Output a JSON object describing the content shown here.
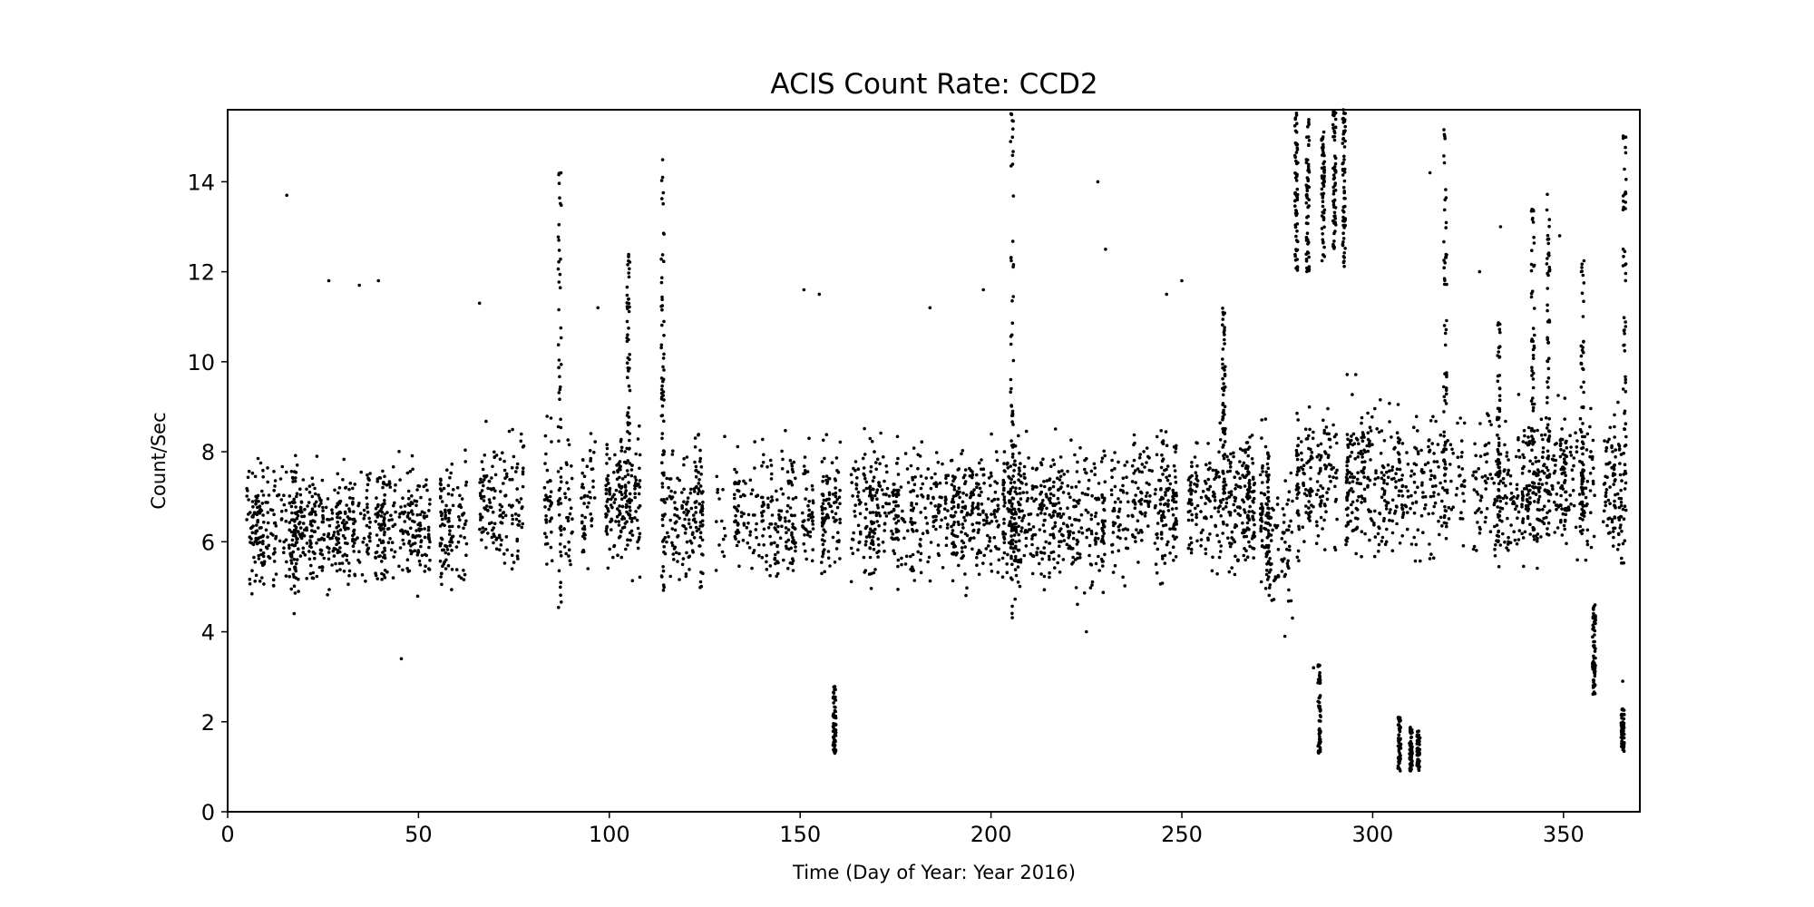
{
  "chart_data": {
    "type": "scatter",
    "title": "ACIS Count Rate: CCD2",
    "xlabel": "Time (Day of Year: Year 2016)",
    "ylabel": "Count/Sec",
    "xlim": [
      0,
      370
    ],
    "ylim": [
      0,
      15.6
    ],
    "xticks": [
      0,
      50,
      100,
      150,
      200,
      250,
      300,
      350
    ],
    "yticks": [
      0,
      2,
      4,
      6,
      8,
      10,
      12,
      14
    ],
    "grid": false,
    "marker_color": "#000000",
    "series": [
      {
        "dense_bands": [
          {
            "x": [
              5,
              62
            ],
            "y": [
              4.3,
              8.3
            ]
          },
          {
            "x": [
              66,
              110
            ],
            "y": [
              4.8,
              9.0
            ]
          },
          {
            "x": [
              113,
              160
            ],
            "y": [
              4.5,
              8.8
            ]
          },
          {
            "x": [
              161,
              202
            ],
            "y": [
              4.5,
              8.8
            ]
          },
          {
            "x": [
              203,
              235
            ],
            "y": [
              4.3,
              8.8
            ]
          },
          {
            "x": [
              237,
              272
            ],
            "y": [
              4.8,
              9.0
            ]
          },
          {
            "x": [
              272,
              278
            ],
            "y": [
              4.0,
              8.0
            ]
          },
          {
            "x": [
              280,
              324
            ],
            "y": [
              5.0,
              9.8
            ]
          },
          {
            "x": [
              326,
              365
            ],
            "y": [
              5.0,
              9.5
            ]
          }
        ],
        "columns": [
          {
            "x": 159,
            "y": [
              1.3,
              2.8
            ]
          },
          {
            "x": 205.5,
            "y": [
              4.3,
              15.6
            ]
          },
          {
            "x": 114,
            "y": [
              4.8,
              14.8
            ]
          },
          {
            "x": 87,
            "y": [
              4.5,
              14.5
            ]
          },
          {
            "x": 105,
            "y": [
              6.5,
              12.4
            ]
          },
          {
            "x": 280,
            "y": [
              12.0,
              15.6
            ]
          },
          {
            "x": 283,
            "y": [
              12.0,
              15.4
            ]
          },
          {
            "x": 287,
            "y": [
              12.2,
              15.2
            ]
          },
          {
            "x": 290,
            "y": [
              12.5,
              15.6
            ]
          },
          {
            "x": 292.5,
            "y": [
              12.0,
              15.6
            ]
          },
          {
            "x": 286,
            "y": [
              1.3,
              3.4
            ]
          },
          {
            "x": 307,
            "y": [
              0.9,
              2.1
            ]
          },
          {
            "x": 310,
            "y": [
              0.9,
              1.9
            ]
          },
          {
            "x": 312,
            "y": [
              0.9,
              1.8
            ]
          },
          {
            "x": 319,
            "y": [
              6.0,
              15.4
            ]
          },
          {
            "x": 333,
            "y": [
              6.0,
              11.0
            ]
          },
          {
            "x": 342,
            "y": [
              6.0,
              13.4
            ]
          },
          {
            "x": 346,
            "y": [
              6.0,
              13.8
            ]
          },
          {
            "x": 355,
            "y": [
              6.0,
              12.4
            ]
          },
          {
            "x": 358,
            "y": [
              2.6,
              4.6
            ]
          },
          {
            "x": 365.5,
            "y": [
              1.3,
              2.3
            ]
          },
          {
            "x": 366,
            "y": [
              5.5,
              15.3
            ]
          },
          {
            "x": 261,
            "y": [
              7.0,
              11.3
            ]
          }
        ],
        "outliers": [
          {
            "x": 15.5,
            "y": 13.7
          },
          {
            "x": 26.5,
            "y": 11.8
          },
          {
            "x": 34.5,
            "y": 11.7
          },
          {
            "x": 39.5,
            "y": 11.8
          },
          {
            "x": 66,
            "y": 11.3
          },
          {
            "x": 97,
            "y": 11.2
          },
          {
            "x": 151,
            "y": 11.6
          },
          {
            "x": 155,
            "y": 11.5
          },
          {
            "x": 184,
            "y": 11.2
          },
          {
            "x": 198,
            "y": 11.6
          },
          {
            "x": 228,
            "y": 14.0
          },
          {
            "x": 230,
            "y": 12.5
          },
          {
            "x": 250,
            "y": 11.8
          },
          {
            "x": 246,
            "y": 11.5
          },
          {
            "x": 315,
            "y": 14.2
          },
          {
            "x": 328,
            "y": 12.0
          },
          {
            "x": 333.5,
            "y": 13.0
          },
          {
            "x": 349,
            "y": 12.8
          },
          {
            "x": 45.5,
            "y": 3.4
          },
          {
            "x": 284.5,
            "y": 3.2
          },
          {
            "x": 365.5,
            "y": 2.9
          },
          {
            "x": 277,
            "y": 3.9
          },
          {
            "x": 225,
            "y": 4.0
          }
        ]
      }
    ]
  }
}
